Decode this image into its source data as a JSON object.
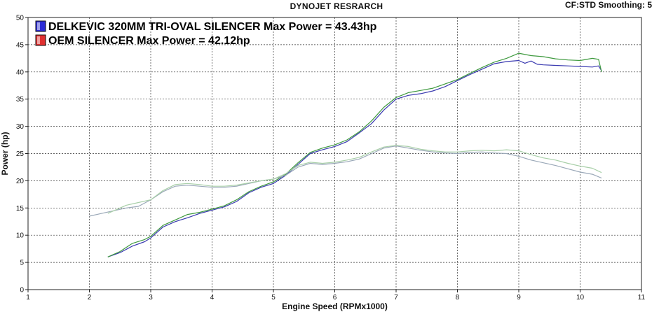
{
  "header": {
    "title": "DYNOJET RESRARCH",
    "settings": "CF:STD Smoothing: 5"
  },
  "legend": [
    {
      "label": "DELKEVIC 320MM TRI-OVAL SILENCER  Max Power = 43.43hp",
      "color": "#2b2bd6"
    },
    {
      "label": "OEM SILENCER Max Power = 42.12hp",
      "color": "#e03030"
    }
  ],
  "colors": {
    "run_a": "#3a3ab0",
    "run_b": "#3f9a3f",
    "run_c": "#9aa8b8",
    "run_d": "#a8cfa8",
    "grid": "#333333",
    "plot_bg": "#ffffff"
  },
  "chart_data": {
    "type": "line",
    "xlabel": "Engine Speed (RPMx1000)",
    "ylabel": "Power (hp)",
    "xlim": [
      1,
      11
    ],
    "ylim": [
      0,
      50
    ],
    "x_ticks": [
      1,
      2,
      3,
      4,
      5,
      6,
      7,
      8,
      9,
      10,
      11
    ],
    "y_ticks": [
      0,
      5,
      10,
      15,
      20,
      25,
      30,
      35,
      40,
      45,
      50
    ],
    "grid": true,
    "legend_position": "top-left",
    "series": [
      {
        "x": [
          2.3,
          2.5,
          2.7,
          2.9,
          3.0,
          3.2,
          3.4,
          3.6,
          3.8,
          4.0,
          4.2,
          4.4,
          4.6,
          4.8,
          5.0,
          5.2,
          5.4,
          5.6,
          5.8,
          6.0,
          6.2,
          6.4,
          6.6,
          6.8,
          7.0,
          7.2,
          7.4,
          7.6,
          7.8,
          8.0,
          8.2,
          8.4,
          8.6,
          8.8,
          9.0,
          9.1,
          9.2,
          9.3,
          9.4,
          9.6,
          9.8,
          10.0,
          10.2,
          10.3,
          10.35
        ],
        "values": [
          6.0,
          6.8,
          8.0,
          8.8,
          9.5,
          11.5,
          12.5,
          13.2,
          14.0,
          14.6,
          15.2,
          16.2,
          17.8,
          18.8,
          19.5,
          21.0,
          23.0,
          25.0,
          25.7,
          26.3,
          27.2,
          28.8,
          30.5,
          33.0,
          35.0,
          35.7,
          36.0,
          36.5,
          37.3,
          38.4,
          39.5,
          40.5,
          41.5,
          41.9,
          42.1,
          41.6,
          42.0,
          41.4,
          41.3,
          41.2,
          41.1,
          41.0,
          40.9,
          41.1,
          40.2
        ]
      },
      {
        "x": [
          2.3,
          2.5,
          2.7,
          2.9,
          3.0,
          3.2,
          3.4,
          3.6,
          3.8,
          4.0,
          4.2,
          4.4,
          4.6,
          4.8,
          5.0,
          5.2,
          5.4,
          5.6,
          5.8,
          6.0,
          6.2,
          6.4,
          6.6,
          6.8,
          7.0,
          7.2,
          7.4,
          7.6,
          7.8,
          8.0,
          8.2,
          8.4,
          8.6,
          8.8,
          9.0,
          9.2,
          9.4,
          9.6,
          9.8,
          10.0,
          10.2,
          10.3,
          10.35
        ],
        "values": [
          6.0,
          7.0,
          8.5,
          9.2,
          9.8,
          11.8,
          12.8,
          13.8,
          14.2,
          14.8,
          15.4,
          16.5,
          18.0,
          19.0,
          19.8,
          21.2,
          23.3,
          25.2,
          26.0,
          26.6,
          27.5,
          29.0,
          31.0,
          33.5,
          35.3,
          36.2,
          36.6,
          37.0,
          37.8,
          38.6,
          39.7,
          40.8,
          41.8,
          42.5,
          43.43,
          43.0,
          42.8,
          42.4,
          42.2,
          42.1,
          42.5,
          42.3,
          40.0
        ]
      },
      {
        "x": [
          2.0,
          2.2,
          2.4,
          2.6,
          2.8,
          3.0,
          3.2,
          3.4,
          3.6,
          3.8,
          4.0,
          4.2,
          4.4,
          4.6,
          4.8,
          5.0,
          5.2,
          5.4,
          5.6,
          5.8,
          6.0,
          6.2,
          6.4,
          6.6,
          6.8,
          7.0,
          7.2,
          7.4,
          7.6,
          7.8,
          8.0,
          8.2,
          8.4,
          8.6,
          8.8,
          9.0,
          9.2,
          9.4,
          9.6,
          9.8,
          10.0,
          10.2,
          10.35
        ],
        "values": [
          13.5,
          14.0,
          14.5,
          15.0,
          15.3,
          16.5,
          18.0,
          19.0,
          19.2,
          19.0,
          18.8,
          18.8,
          19.0,
          19.5,
          20.0,
          20.3,
          21.0,
          22.5,
          23.2,
          23.0,
          23.2,
          23.5,
          24.0,
          25.0,
          26.0,
          26.4,
          26.0,
          25.6,
          25.3,
          25.1,
          25.0,
          25.2,
          25.3,
          25.1,
          25.0,
          24.5,
          23.8,
          23.3,
          22.8,
          22.2,
          21.6,
          21.2,
          20.5
        ]
      },
      {
        "x": [
          2.3,
          2.6,
          2.8,
          3.0,
          3.2,
          3.4,
          3.6,
          3.8,
          4.0,
          4.2,
          4.4,
          4.6,
          4.8,
          5.0,
          5.2,
          5.4,
          5.6,
          5.8,
          6.0,
          6.2,
          6.4,
          6.6,
          6.8,
          7.0,
          7.2,
          7.4,
          7.6,
          7.8,
          8.0,
          8.2,
          8.4,
          8.6,
          8.8,
          9.0,
          9.2,
          9.4,
          9.6,
          9.8,
          10.0,
          10.2,
          10.35
        ],
        "values": [
          14.0,
          15.5,
          16.0,
          16.5,
          18.2,
          19.3,
          19.5,
          19.3,
          19.0,
          19.0,
          19.2,
          19.6,
          20.0,
          20.3,
          21.3,
          22.8,
          23.4,
          23.2,
          23.4,
          23.8,
          24.3,
          25.3,
          26.2,
          26.5,
          26.3,
          25.8,
          25.5,
          25.3,
          25.3,
          25.5,
          25.6,
          25.5,
          25.7,
          25.5,
          24.8,
          24.2,
          23.8,
          23.2,
          22.7,
          22.3,
          21.5
        ]
      }
    ]
  }
}
